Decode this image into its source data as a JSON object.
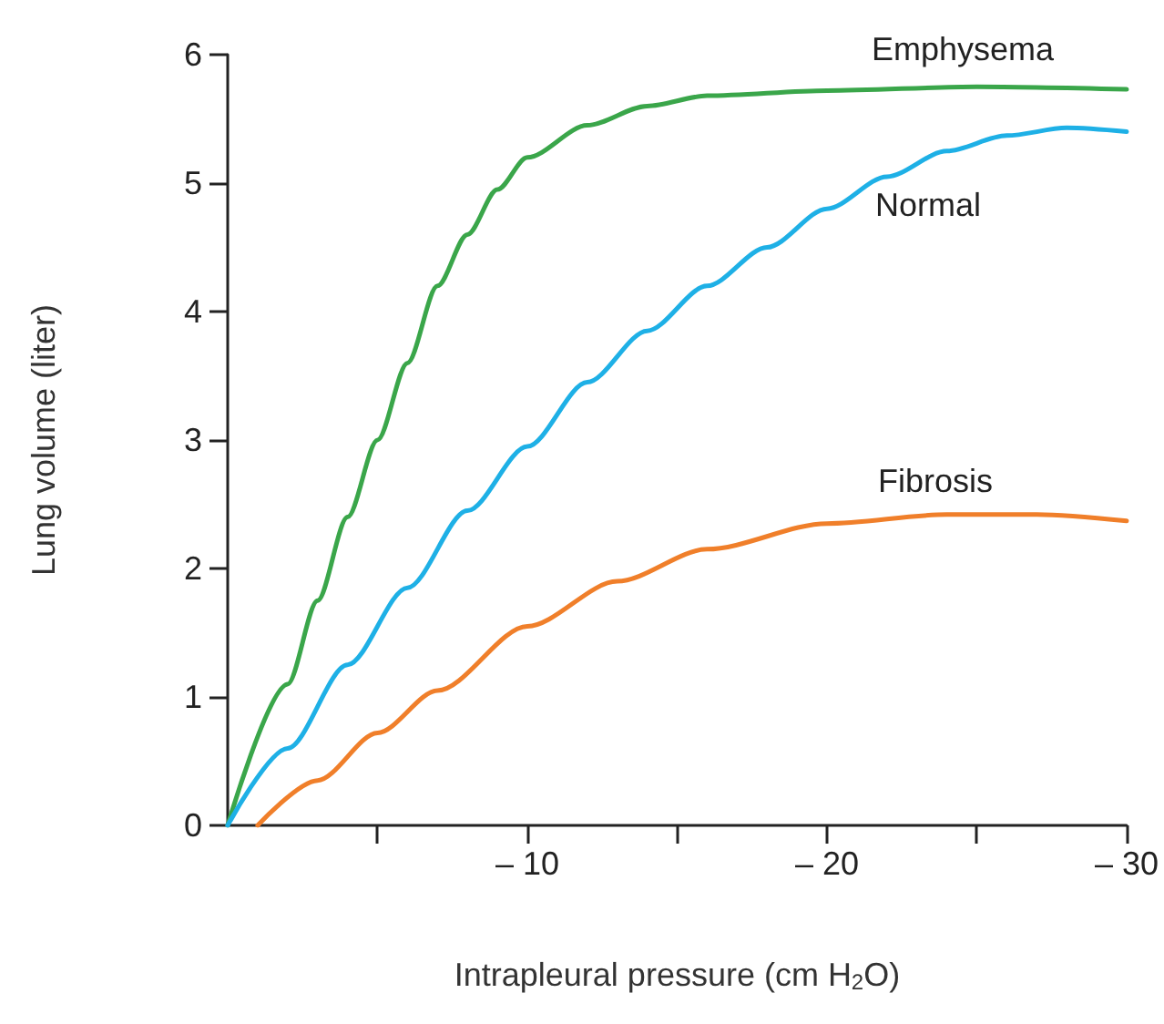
{
  "chart_data": {
    "type": "line",
    "xlabel": "Intrapleural pressure (cm H$_{2}$O)",
    "ylabel": "Lung volume (liter)",
    "xlim": [
      0,
      -30
    ],
    "ylim": [
      0,
      6
    ],
    "xticks": [
      {
        "value": -5,
        "label": null
      },
      {
        "value": -10,
        "label": "– 10"
      },
      {
        "value": -15,
        "label": null
      },
      {
        "value": -20,
        "label": "– 20"
      },
      {
        "value": -25,
        "label": null
      },
      {
        "value": -30,
        "label": "– 30"
      }
    ],
    "yticks": [
      0,
      1,
      2,
      3,
      4,
      5,
      6
    ],
    "grid": false,
    "legend": false,
    "marker": "none",
    "line_style": "solid",
    "series": [
      {
        "name": "Emphysema",
        "color": "#3aa64a",
        "x": [
          0,
          -2,
          -3,
          -4,
          -5,
          -6,
          -7,
          -8,
          -9,
          -10,
          -12,
          -14,
          -16,
          -20,
          -25,
          -30
        ],
        "values": [
          0,
          1.1,
          1.75,
          2.4,
          3.0,
          3.6,
          4.2,
          4.6,
          4.95,
          5.2,
          5.45,
          5.6,
          5.68,
          5.72,
          5.75,
          5.73
        ]
      },
      {
        "name": "Normal",
        "color": "#1eb0e6",
        "x": [
          0,
          -2,
          -4,
          -6,
          -8,
          -10,
          -12,
          -14,
          -16,
          -18,
          -20,
          -22,
          -24,
          -26,
          -28,
          -30
        ],
        "values": [
          0,
          0.6,
          1.25,
          1.85,
          2.45,
          2.95,
          3.45,
          3.85,
          4.2,
          4.5,
          4.8,
          5.05,
          5.25,
          5.37,
          5.43,
          5.4
        ]
      },
      {
        "name": "Fibrosis",
        "color": "#f07f2a",
        "x": [
          -1,
          -3,
          -5,
          -7,
          -10,
          -13,
          -16,
          -20,
          -24,
          -27,
          -30
        ],
        "values": [
          0,
          0.35,
          0.72,
          1.05,
          1.55,
          1.9,
          2.15,
          2.35,
          2.42,
          2.42,
          2.37
        ]
      }
    ]
  }
}
